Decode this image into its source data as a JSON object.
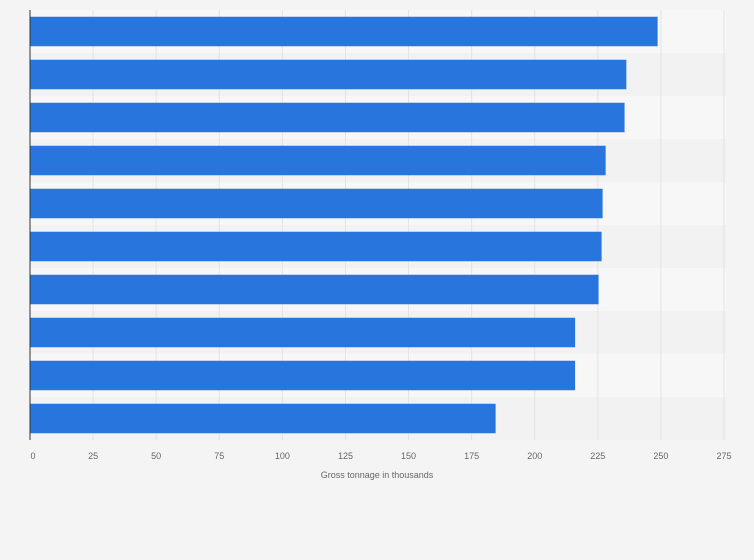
{
  "colors": {
    "page_background": "#f4f4f4",
    "band_light": "#f7f7f7",
    "band_dark": "#f2f2f2",
    "bar": "#2876dd",
    "gridline": "#e3e3e3",
    "axis_line": "#333333"
  },
  "chart_data": {
    "type": "bar",
    "orientation": "horizontal",
    "categories": [
      "",
      "",
      "",
      "",
      "",
      "",
      "",
      "",
      "",
      ""
    ],
    "values": [
      248.7,
      236.3,
      235.6,
      228.1,
      226.9,
      226.5,
      225.3,
      216.0,
      216.0,
      184.5
    ],
    "xlabel": "Gross tonnage in thousands",
    "ylabel": "",
    "xlim": [
      0,
      275
    ],
    "xticks": [
      0,
      25,
      50,
      75,
      100,
      125,
      150,
      175,
      200,
      225,
      250,
      275
    ],
    "grid": true,
    "legend": "none"
  }
}
